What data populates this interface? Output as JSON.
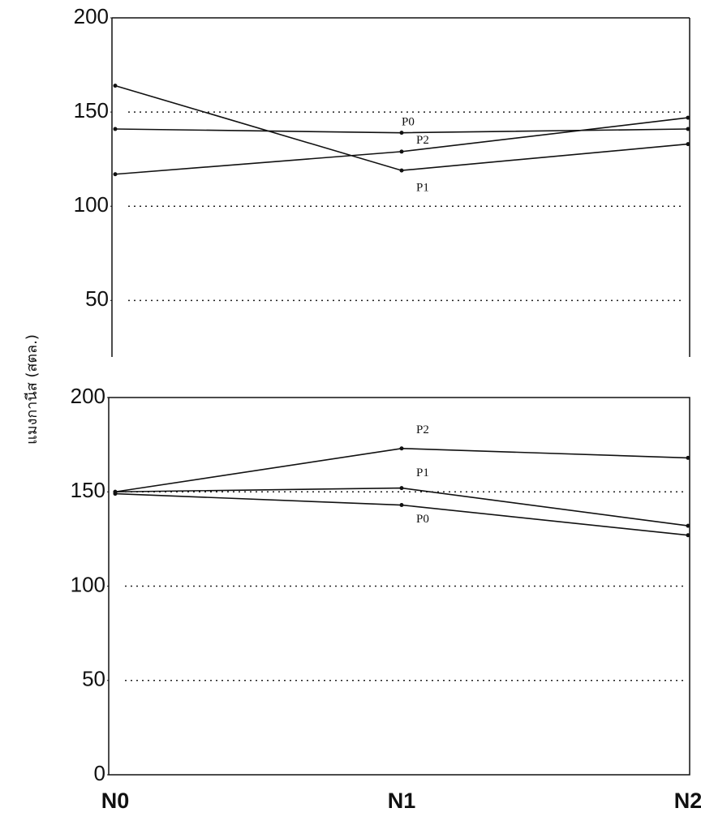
{
  "chart_data": [
    {
      "type": "line",
      "y_label": "แมงกานีส (สตล.)",
      "series": [
        {
          "name": "P0",
          "color": "#111111",
          "values": [
            117,
            129,
            147
          ]
        },
        {
          "name": "P2",
          "color": "#111111",
          "values": [
            141,
            139,
            141
          ]
        },
        {
          "name": "P1",
          "color": "#111111",
          "values": [
            164,
            119,
            133
          ]
        }
      ],
      "ylim": [
        20,
        200
      ],
      "yticks": [
        50,
        100,
        150,
        200
      ],
      "grid": true
    },
    {
      "type": "line",
      "categories": [
        "N0",
        "N1",
        "N2"
      ],
      "series": [
        {
          "name": "P2",
          "color": "#111111",
          "values": [
            150,
            173,
            168
          ]
        },
        {
          "name": "P1",
          "color": "#111111",
          "values": [
            150,
            152,
            132
          ]
        },
        {
          "name": "P0",
          "color": "#111111",
          "values": [
            149,
            143,
            127
          ]
        }
      ],
      "ylim": [
        0,
        200
      ],
      "yticks": [
        0,
        50,
        100,
        150,
        200
      ],
      "grid": true
    }
  ]
}
